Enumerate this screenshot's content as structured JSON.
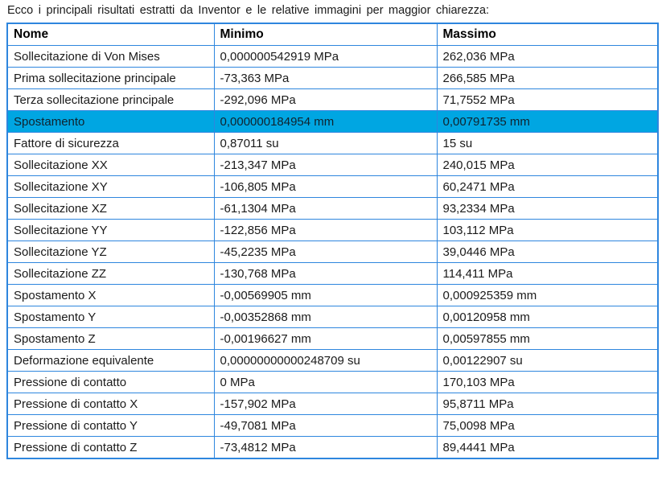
{
  "intro_text": "Ecco i principali risultati estratti da Inventor e le relative immagini per maggior chiarezza:",
  "colors": {
    "border": "#2E86DE",
    "highlight": "#00A6E2",
    "text": "#1A1A1A"
  },
  "table": {
    "headers": [
      "Nome",
      "Minimo",
      "Massimo"
    ],
    "highlighted_row_index": 3,
    "rows": [
      {
        "nome": "Sollecitazione di Von Mises",
        "minimo": "0,000000542919 MPa",
        "massimo": "262,036 MPa"
      },
      {
        "nome": "Prima sollecitazione principale",
        "minimo": "-73,363 MPa",
        "massimo": "266,585 MPa"
      },
      {
        "nome": "Terza sollecitazione principale",
        "minimo": "-292,096 MPa",
        "massimo": "71,7552 MPa"
      },
      {
        "nome": "Spostamento",
        "minimo": "0,000000184954 mm",
        "massimo": "0,00791735 mm"
      },
      {
        "nome": "Fattore di sicurezza",
        "minimo": "0,87011 su",
        "massimo": "15 su"
      },
      {
        "nome": "Sollecitazione XX",
        "minimo": "-213,347 MPa",
        "massimo": "240,015 MPa"
      },
      {
        "nome": "Sollecitazione XY",
        "minimo": "-106,805 MPa",
        "massimo": "60,2471 MPa"
      },
      {
        "nome": "Sollecitazione XZ",
        "minimo": "-61,1304 MPa",
        "massimo": "93,2334 MPa"
      },
      {
        "nome": "Sollecitazione YY",
        "minimo": "-122,856 MPa",
        "massimo": "103,112 MPa"
      },
      {
        "nome": "Sollecitazione YZ",
        "minimo": "-45,2235 MPa",
        "massimo": "39,0446 MPa"
      },
      {
        "nome": "Sollecitazione ZZ",
        "minimo": "-130,768 MPa",
        "massimo": "114,411 MPa"
      },
      {
        "nome": "Spostamento X",
        "minimo": "-0,00569905 mm",
        "massimo": "0,000925359 mm"
      },
      {
        "nome": "Spostamento Y",
        "minimo": "-0,00352868 mm",
        "massimo": "0,00120958 mm"
      },
      {
        "nome": "Spostamento Z",
        "minimo": "-0,00196627 mm",
        "massimo": "0,00597855 mm"
      },
      {
        "nome": "Deformazione equivalente",
        "minimo": "0,00000000000248709 su",
        "massimo": "0,00122907 su"
      },
      {
        "nome": "Pressione di contatto",
        "minimo": "0 MPa",
        "massimo": "170,103 MPa"
      },
      {
        "nome": "Pressione di contatto X",
        "minimo": "-157,902 MPa",
        "massimo": "95,8711 MPa"
      },
      {
        "nome": "Pressione di contatto Y",
        "minimo": "-49,7081 MPa",
        "massimo": "75,0098 MPa"
      },
      {
        "nome": "Pressione di contatto Z",
        "minimo": "-73,4812 MPa",
        "massimo": "89,4441 MPa"
      }
    ]
  }
}
